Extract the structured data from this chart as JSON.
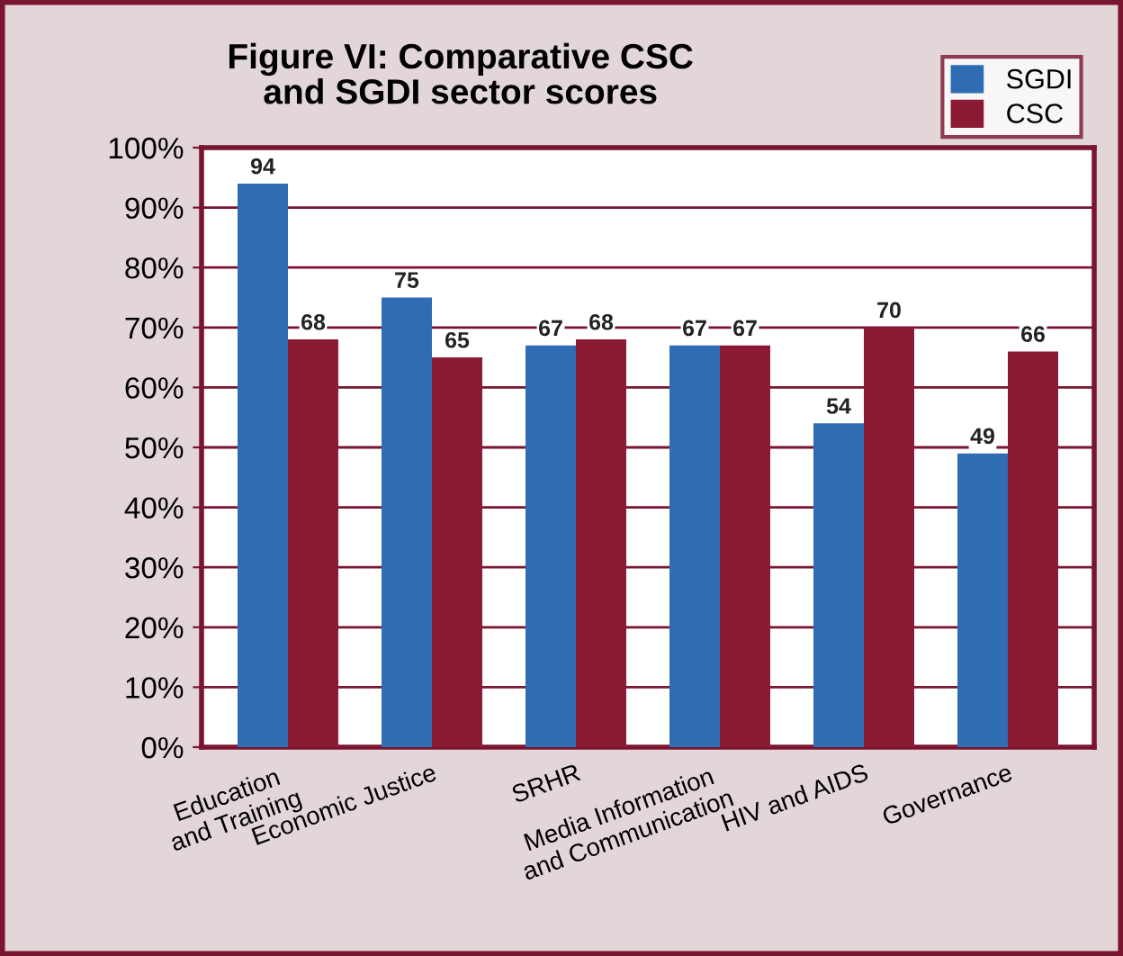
{
  "chart_data": {
    "type": "bar",
    "title": "Figure VI: Comparative CSC\nand SGDI sector scores",
    "categories": [
      "Education\nand Training",
      "Economic Justice",
      "SRHR",
      "Media Information\nand Communication",
      "HIV and AIDS",
      "Governance"
    ],
    "series": [
      {
        "name": "SGDI",
        "color": "#2e6db4",
        "values": [
          94,
          75,
          67,
          67,
          54,
          49
        ]
      },
      {
        "name": "CSC",
        "color": "#8b1a35",
        "values": [
          68,
          65,
          68,
          67,
          70,
          66
        ]
      }
    ],
    "ylim": [
      0,
      100
    ],
    "yticks": [
      {
        "value": 0,
        "label": "0%"
      },
      {
        "value": 10,
        "label": "10%"
      },
      {
        "value": 20,
        "label": "20%"
      },
      {
        "value": 30,
        "label": "30%"
      },
      {
        "value": 40,
        "label": "40%"
      },
      {
        "value": 50,
        "label": "50%"
      },
      {
        "value": 60,
        "label": "60%"
      },
      {
        "value": 70,
        "label": "70%"
      },
      {
        "value": 80,
        "label": "80%"
      },
      {
        "value": 90,
        "label": "90%"
      },
      {
        "value": 100,
        "label": "100%"
      }
    ],
    "grid": "y",
    "legend": "top right",
    "data_labels": true
  }
}
